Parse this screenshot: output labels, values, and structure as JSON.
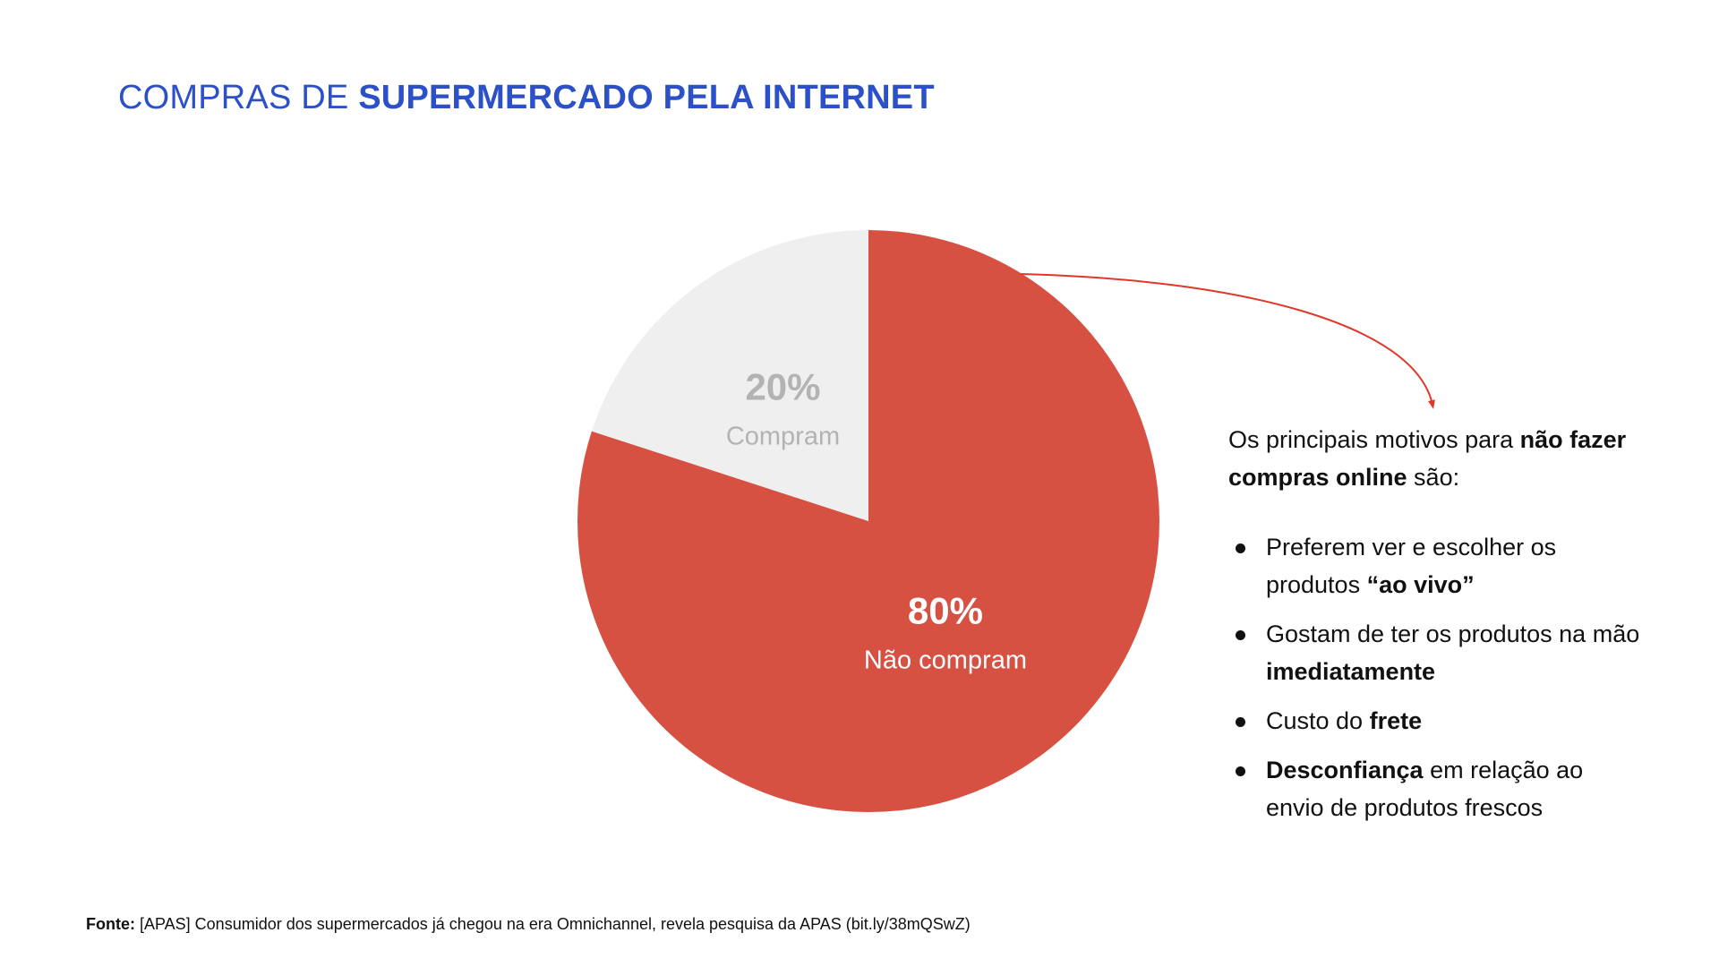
{
  "title": {
    "regular": "COMPRAS DE ",
    "bold": "SUPERMERCADO PELA INTERNET"
  },
  "colors": {
    "title": "#2b50c8",
    "nao_compram": "#d75143",
    "compram": "#efefef",
    "compram_text": "#b3b3b3",
    "arrow": "#e0382b"
  },
  "chart_data": {
    "type": "pie",
    "slices": [
      {
        "label": "Não compram",
        "value": 80,
        "value_label": "80%",
        "color": "#d75143",
        "text_color": "#ffffff"
      },
      {
        "label": "Compram",
        "value": 20,
        "value_label": "20%",
        "color": "#efefef",
        "text_color": "#b3b3b3"
      }
    ],
    "start_angle_deg": 0,
    "direction": "clockwise",
    "legend": "none"
  },
  "panel": {
    "intro_1": "Os principais motivos para ",
    "intro_bold": "não fazer compras online",
    "intro_2": " são:",
    "reasons": [
      {
        "pre": "Preferem ver e escolher os produtos ",
        "bold": "“ao vivo”",
        "post": ""
      },
      {
        "pre": "Gostam de ter os produtos na mão ",
        "bold": "imediatamente",
        "post": ""
      },
      {
        "pre": "Custo do ",
        "bold": "frete",
        "post": ""
      },
      {
        "pre": "",
        "bold": "Desconfiança",
        "post": " em relação ao envio de produtos frescos"
      }
    ]
  },
  "source": {
    "label": "Fonte:",
    "text": " [APAS] Consumidor dos supermercados já chegou na era Omnichannel, revela pesquisa da APAS (bit.ly/38mQSwZ)"
  }
}
